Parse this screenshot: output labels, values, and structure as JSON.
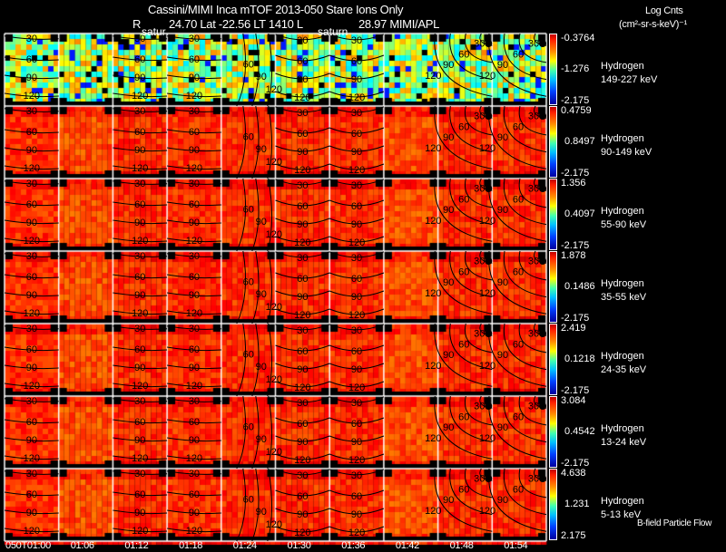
{
  "header": {
    "title": "Cassini/MIMI Inca mTOF  2013-050    Stare    Ions Only",
    "subtitle_r": "R",
    "subtitle": "24.70 Lat -22.56 LT 1410 L",
    "subtitle_l": "28.97  MIMI/APL",
    "units_line1": "Log Cnts",
    "units_line2": "(cm²-sr-s-keV)⁻¹"
  },
  "chart_data": {
    "type": "heatmap",
    "title": "Cassini/MIMI Inca mTOF 2013-050 Stare Ions Only",
    "time_labels": [
      "050T01:00",
      "01:06",
      "01:12",
      "01:18",
      "01:24",
      "01:30",
      "01:36",
      "01:42",
      "01:48",
      "01:54"
    ],
    "contour_levels": [
      "30",
      "60",
      "90",
      "120"
    ],
    "planet_labels": [
      "satur",
      "saturn"
    ],
    "rows": [
      {
        "species": "Hydrogen",
        "energy": "149-227 keV",
        "cb_max": "-0.3764",
        "cb_mid": "-1.276",
        "cb_min": "-2.175"
      },
      {
        "species": "Hydrogen",
        "energy": "90-149 keV",
        "cb_max": "0.4759",
        "cb_mid": "0.8497",
        "cb_min": "-2.175"
      },
      {
        "species": "Hydrogen",
        "energy": "55-90 keV",
        "cb_max": "1.356",
        "cb_mid": "0.4097",
        "cb_min": "-2.175"
      },
      {
        "species": "Hydrogen",
        "energy": "35-55 keV",
        "cb_max": "1.878",
        "cb_mid": "0.1486",
        "cb_min": "-2.175"
      },
      {
        "species": "Hydrogen",
        "energy": "24-35 keV",
        "cb_max": "2.419",
        "cb_mid": "0.1218",
        "cb_min": "-2.175"
      },
      {
        "species": "Hydrogen",
        "energy": "13-24 keV",
        "cb_max": "3.084",
        "cb_mid": "0.4542",
        "cb_min": "-2.175"
      },
      {
        "species": "Hydrogen",
        "energy": "5-13 keV",
        "cb_max": "4.638",
        "cb_mid": "1.231",
        "cb_min": "2.175"
      }
    ]
  },
  "footer": {
    "legend": "B-field Particle Flow"
  }
}
